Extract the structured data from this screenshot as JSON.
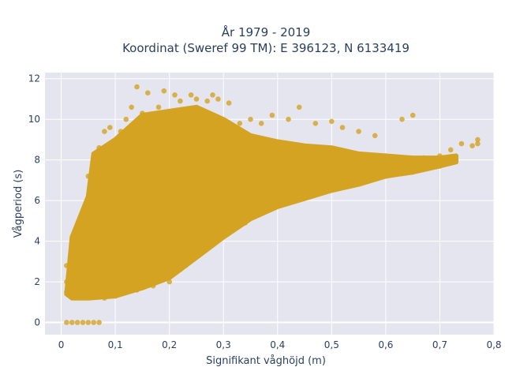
{
  "chart_data": {
    "type": "scatter",
    "title_line1": "År 1979 - 2019",
    "title_line2": "Koordinat (Sweref 99 TM): E 396123, N 6133419",
    "xlabel": "Signifikant våghöjd (m)",
    "ylabel": "Vågperiod (s)",
    "xlim": [
      -0.03,
      0.8
    ],
    "ylim": [
      -0.6,
      12.3
    ],
    "x_ticks": [
      0,
      0.1,
      0.2,
      0.3,
      0.4,
      0.5,
      0.6,
      0.7,
      0.8
    ],
    "x_tick_labels": [
      "0",
      "0,1",
      "0,2",
      "0,3",
      "0,4",
      "0,5",
      "0,6",
      "0,7",
      "0,8"
    ],
    "y_ticks": [
      0,
      2,
      4,
      6,
      8,
      10,
      12
    ],
    "y_tick_labels": [
      "0",
      "2",
      "4",
      "6",
      "8",
      "10",
      "12"
    ],
    "grid": true,
    "legend": "none",
    "colors": {
      "marker": "#d4a322",
      "plot_bg": "#e5e5f0",
      "grid": "#ffffff",
      "text": "#2a3f5f"
    },
    "series": [
      {
        "values": [
          [
            0.01,
            0
          ],
          [
            0.02,
            0
          ],
          [
            0.03,
            0
          ],
          [
            0.04,
            0
          ],
          [
            0.05,
            0
          ],
          [
            0.06,
            0
          ],
          [
            0.07,
            0
          ],
          [
            0.01,
            1.5
          ],
          [
            0.01,
            2.0
          ],
          [
            0.01,
            2.8
          ],
          [
            0.02,
            1.6
          ],
          [
            0.02,
            2.6
          ],
          [
            0.02,
            3.6
          ],
          [
            0.02,
            4.1
          ],
          [
            0.03,
            2.1
          ],
          [
            0.03,
            3.2
          ],
          [
            0.03,
            4.0
          ],
          [
            0.04,
            2.9
          ],
          [
            0.04,
            5.0
          ],
          [
            0.05,
            3.8
          ],
          [
            0.05,
            6.0
          ],
          [
            0.05,
            7.2
          ],
          [
            0.06,
            1.4
          ],
          [
            0.06,
            5.5
          ],
          [
            0.06,
            7.0
          ],
          [
            0.06,
            8.0
          ],
          [
            0.07,
            1.3
          ],
          [
            0.07,
            6.8
          ],
          [
            0.07,
            8.6
          ],
          [
            0.08,
            1.2
          ],
          [
            0.08,
            7.8
          ],
          [
            0.08,
            9.4
          ],
          [
            0.09,
            8.2
          ],
          [
            0.09,
            9.6
          ],
          [
            0.1,
            1.3
          ],
          [
            0.1,
            5.0
          ],
          [
            0.1,
            8.8
          ],
          [
            0.11,
            9.4
          ],
          [
            0.12,
            1.5
          ],
          [
            0.12,
            10.0
          ],
          [
            0.13,
            10.6
          ],
          [
            0.14,
            1.6
          ],
          [
            0.14,
            11.6
          ],
          [
            0.15,
            2.0
          ],
          [
            0.15,
            10.3
          ],
          [
            0.16,
            11.3
          ],
          [
            0.17,
            1.8
          ],
          [
            0.18,
            10.6
          ],
          [
            0.19,
            2.2
          ],
          [
            0.19,
            11.4
          ],
          [
            0.2,
            2.0
          ],
          [
            0.2,
            10.2
          ],
          [
            0.21,
            11.2
          ],
          [
            0.22,
            2.6
          ],
          [
            0.22,
            10.9
          ],
          [
            0.23,
            2.8
          ],
          [
            0.24,
            11.2
          ],
          [
            0.25,
            3.4
          ],
          [
            0.25,
            11.0
          ],
          [
            0.26,
            3.5
          ],
          [
            0.27,
            10.9
          ],
          [
            0.28,
            4.0
          ],
          [
            0.28,
            11.2
          ],
          [
            0.29,
            11.0
          ],
          [
            0.3,
            4.3
          ],
          [
            0.31,
            10.8
          ],
          [
            0.32,
            4.6
          ],
          [
            0.33,
            9.8
          ],
          [
            0.34,
            4.9
          ],
          [
            0.35,
            10.0
          ],
          [
            0.36,
            5.3
          ],
          [
            0.37,
            9.8
          ],
          [
            0.38,
            5.6
          ],
          [
            0.39,
            10.2
          ],
          [
            0.4,
            5.8
          ],
          [
            0.42,
            10.0
          ],
          [
            0.44,
            10.6
          ],
          [
            0.45,
            6.2
          ],
          [
            0.47,
            9.8
          ],
          [
            0.5,
            6.6
          ],
          [
            0.5,
            9.9
          ],
          [
            0.52,
            9.6
          ],
          [
            0.55,
            7.0
          ],
          [
            0.55,
            9.4
          ],
          [
            0.58,
            9.2
          ],
          [
            0.6,
            7.2
          ],
          [
            0.6,
            8.2
          ],
          [
            0.63,
            10.0
          ],
          [
            0.65,
            7.4
          ],
          [
            0.65,
            10.2
          ],
          [
            0.67,
            8.1
          ],
          [
            0.7,
            7.7
          ],
          [
            0.7,
            8.2
          ],
          [
            0.72,
            8.5
          ],
          [
            0.74,
            8.8
          ],
          [
            0.76,
            8.7
          ],
          [
            0.77,
            9.0
          ],
          [
            0.77,
            8.8
          ]
        ]
      }
    ]
  }
}
